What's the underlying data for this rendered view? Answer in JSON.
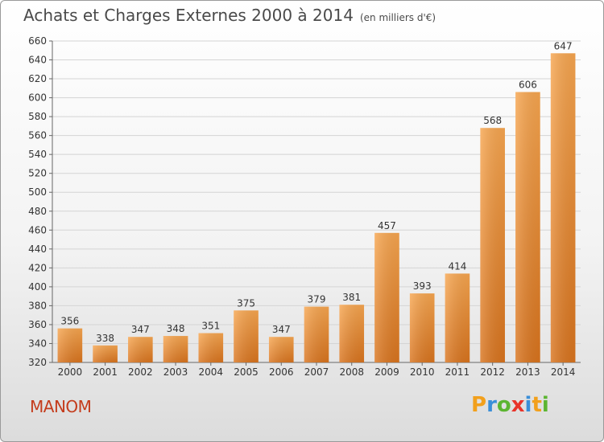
{
  "title": "Achats et Charges Externes 2000 à 2014",
  "subtitle": "(en milliers d'€)",
  "commune": "MANOM",
  "logo": {
    "letters": [
      "P",
      "r",
      "o",
      "x",
      "i",
      "t",
      "i"
    ],
    "colors": [
      "#f2a01c",
      "#3a8fd8",
      "#5cb531",
      "#e8332a",
      "#3a8fd8",
      "#f2a01c",
      "#5cb531"
    ]
  },
  "chart_data": {
    "type": "bar",
    "categories": [
      "2000",
      "2001",
      "2002",
      "2003",
      "2004",
      "2005",
      "2006",
      "2007",
      "2008",
      "2009",
      "2010",
      "2011",
      "2012",
      "2013",
      "2014"
    ],
    "values": [
      356,
      338,
      347,
      348,
      351,
      375,
      347,
      379,
      381,
      457,
      393,
      414,
      568,
      606,
      647
    ],
    "ylim": [
      320,
      660
    ],
    "yticks": [
      320,
      340,
      360,
      380,
      400,
      420,
      440,
      460,
      480,
      500,
      520,
      540,
      560,
      580,
      600,
      620,
      640,
      660
    ],
    "grid": true,
    "bar_color": "#f0963a"
  }
}
